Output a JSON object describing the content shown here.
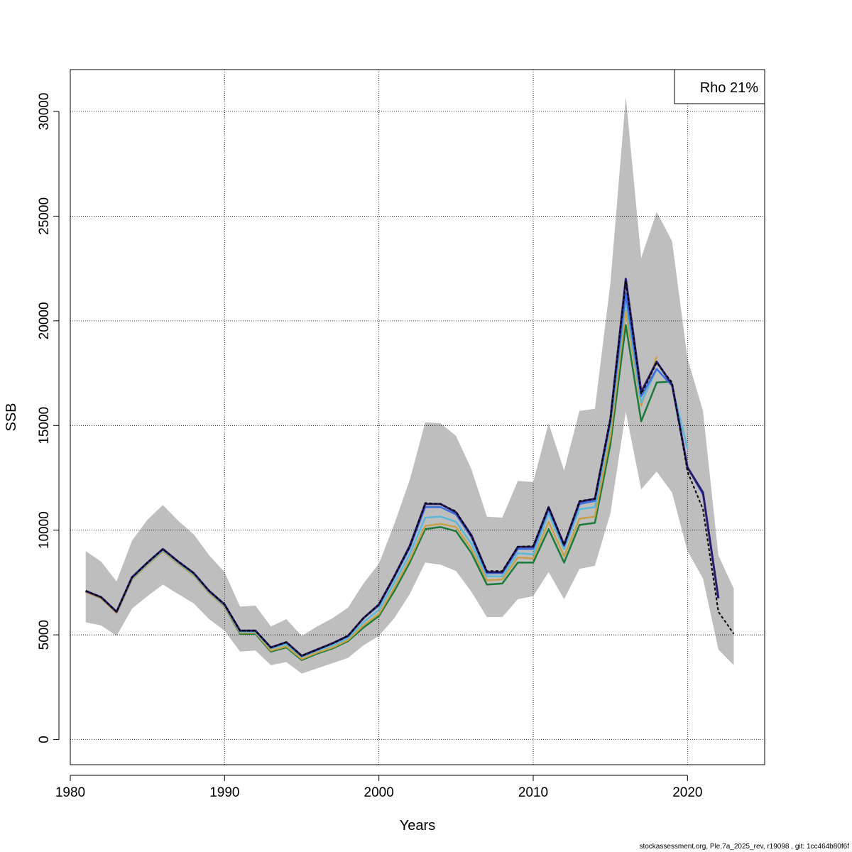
{
  "chart_data": {
    "type": "line",
    "title": "",
    "xlabel": "Years",
    "ylabel": "SSB",
    "xlim": [
      1980,
      2025
    ],
    "ylim": [
      -1200,
      32000
    ],
    "x_ticks": [
      1980,
      1990,
      2000,
      2010,
      2020
    ],
    "y_ticks": [
      0,
      5000,
      10000,
      15000,
      20000,
      25000,
      30000
    ],
    "grid": true,
    "legend": {
      "text": "Rho 21%",
      "placement": "top-right"
    },
    "confidence_band": {
      "color": "#bebebe",
      "x": [
        1981,
        1982,
        1983,
        1984,
        1985,
        1986,
        1987,
        1988,
        1989,
        1990,
        1991,
        1992,
        1993,
        1994,
        1995,
        1996,
        1997,
        1998,
        1999,
        2000,
        2001,
        2002,
        2003,
        2004,
        2005,
        2006,
        2007,
        2008,
        2009,
        2010,
        2011,
        2012,
        2013,
        2014,
        2015,
        2016,
        2017,
        2018,
        2019,
        2020,
        2021,
        2022,
        2023
      ],
      "upper": [
        9000,
        8500,
        7550,
        9500,
        10500,
        11200,
        10450,
        9800,
        8800,
        8000,
        6350,
        6400,
        5400,
        5750,
        4950,
        5400,
        5800,
        6300,
        7450,
        8400,
        10300,
        12400,
        15150,
        15100,
        14500,
        12900,
        10650,
        10600,
        12350,
        12300,
        15100,
        12850,
        15700,
        15800,
        21800,
        30700,
        23000,
        25200,
        23800,
        18200,
        15700,
        8800,
        7200
      ],
      "lower": [
        5600,
        5450,
        4950,
        6250,
        6850,
        7400,
        6950,
        6500,
        5750,
        5200,
        4200,
        4250,
        3550,
        3700,
        3150,
        3400,
        3650,
        3900,
        4500,
        4950,
        5800,
        6950,
        8450,
        8350,
        8050,
        7050,
        5850,
        5850,
        6700,
        6850,
        8000,
        6700,
        8150,
        8300,
        10800,
        15650,
        11950,
        12800,
        11800,
        9000,
        7700,
        4300,
        3550
      ]
    },
    "series": [
      {
        "color": "#000000",
        "dashed": true,
        "width": 2,
        "x": [
          1981,
          1982,
          1983,
          1984,
          1985,
          1986,
          1987,
          1988,
          1989,
          1990,
          1991,
          1992,
          1993,
          1994,
          1995,
          1996,
          1997,
          1998,
          1999,
          2000,
          2001,
          2002,
          2003,
          2004,
          2005,
          2006,
          2007,
          2008,
          2009,
          2010,
          2011,
          2012,
          2013,
          2014,
          2015,
          2016,
          2017,
          2018,
          2019,
          2020,
          2021,
          2022,
          2023
        ],
        "values": [
          7100,
          6800,
          6100,
          7750,
          8450,
          9100,
          8500,
          7950,
          7100,
          6450,
          5200,
          5200,
          4400,
          4650,
          4000,
          4300,
          4600,
          4950,
          5800,
          6450,
          7800,
          9200,
          11300,
          11250,
          10900,
          9700,
          8050,
          8050,
          9200,
          9250,
          11100,
          9300,
          11400,
          11500,
          15300,
          21900,
          16500,
          18000,
          17050,
          12800,
          11000,
          6100,
          5050
        ]
      },
      {
        "color": "#2a1b6e",
        "dashed": false,
        "width": 3,
        "x": [
          1981,
          1982,
          1983,
          1984,
          1985,
          1986,
          1987,
          1988,
          1989,
          1990,
          1991,
          1992,
          1993,
          1994,
          1995,
          1996,
          1997,
          1998,
          1999,
          2000,
          2001,
          2002,
          2003,
          2004,
          2005,
          2006,
          2007,
          2008,
          2009,
          2010,
          2011,
          2012,
          2013,
          2014,
          2015,
          2016,
          2017,
          2018,
          2019,
          2020,
          2021,
          2022
        ],
        "values": [
          7100,
          6800,
          6100,
          7750,
          8450,
          9100,
          8500,
          7950,
          7100,
          6450,
          5200,
          5200,
          4400,
          4650,
          4000,
          4300,
          4600,
          4950,
          5800,
          6450,
          7800,
          9250,
          11250,
          11250,
          10850,
          9750,
          8000,
          8000,
          9200,
          9200,
          11100,
          9300,
          11350,
          11500,
          15300,
          22000,
          16600,
          18050,
          16950,
          13000,
          11800,
          6750
        ]
      },
      {
        "color": "#3b6ee0",
        "dashed": false,
        "width": 2.5,
        "x": [
          1981,
          1982,
          1983,
          1984,
          1985,
          1986,
          1987,
          1988,
          1989,
          1990,
          1991,
          1992,
          1993,
          1994,
          1995,
          1996,
          1997,
          1998,
          1999,
          2000,
          2001,
          2002,
          2003,
          2004,
          2005,
          2006,
          2007,
          2008,
          2009,
          2010,
          2011,
          2012,
          2013,
          2014,
          2015,
          2016,
          2017,
          2018,
          2019,
          2020,
          2021
        ],
        "values": [
          7100,
          6800,
          6100,
          7750,
          8450,
          9100,
          8500,
          7950,
          7100,
          6450,
          5200,
          5200,
          4400,
          4650,
          4000,
          4300,
          4600,
          4950,
          5800,
          6400,
          7750,
          9150,
          11100,
          11100,
          10750,
          9650,
          7950,
          7950,
          9100,
          9100,
          11000,
          9250,
          11250,
          11400,
          15200,
          21300,
          16400,
          17700,
          16900,
          13000,
          11700
        ]
      },
      {
        "color": "#5bb8d6",
        "dashed": false,
        "width": 2.5,
        "x": [
          1981,
          1982,
          1983,
          1984,
          1985,
          1986,
          1987,
          1988,
          1989,
          1990,
          1991,
          1992,
          1993,
          1994,
          1995,
          1996,
          1997,
          1998,
          1999,
          2000,
          2001,
          2002,
          2003,
          2004,
          2005,
          2006,
          2007,
          2008,
          2009,
          2010,
          2011,
          2012,
          2013,
          2014,
          2015,
          2016,
          2017,
          2018,
          2019,
          2020
        ],
        "values": [
          7100,
          6800,
          6100,
          7700,
          8400,
          9050,
          8450,
          7900,
          7050,
          6400,
          5150,
          5150,
          4350,
          4550,
          3950,
          4250,
          4500,
          4850,
          5600,
          6200,
          7500,
          8850,
          10600,
          10650,
          10400,
          9350,
          7800,
          7800,
          8900,
          8850,
          10800,
          9100,
          11000,
          11100,
          15000,
          21000,
          16100,
          17700,
          16900,
          13900
        ]
      },
      {
        "color": "#c9a04a",
        "dashed": false,
        "width": 2.5,
        "x": [
          1981,
          1982,
          1983,
          1984,
          1985,
          1986,
          1987,
          1988,
          1989,
          1990,
          1991,
          1992,
          1993,
          1994,
          1995,
          1996,
          1997,
          1998,
          1999,
          2000,
          2001,
          2002,
          2003,
          2004,
          2005,
          2006,
          2007,
          2008,
          2009,
          2010,
          2011,
          2012,
          2013,
          2014,
          2015,
          2016,
          2017,
          2018
        ],
        "values": [
          7050,
          6750,
          6050,
          7650,
          8350,
          9000,
          8400,
          7850,
          7000,
          6350,
          5100,
          5100,
          4250,
          4450,
          3850,
          4150,
          4400,
          4750,
          5450,
          6000,
          7250,
          8600,
          10200,
          10300,
          10150,
          9100,
          7600,
          7650,
          8700,
          8650,
          10400,
          8750,
          10550,
          10650,
          14500,
          20500,
          15950,
          18300
        ]
      },
      {
        "color": "#1a7a3a",
        "dashed": false,
        "width": 2.5,
        "x": [
          1981,
          1982,
          1983,
          1984,
          1985,
          1986,
          1987,
          1988,
          1989,
          1990,
          1991,
          1992,
          1993,
          1994,
          1995,
          1996,
          1997,
          1998,
          1999,
          2000,
          2001,
          2002,
          2003,
          2004,
          2005,
          2006,
          2007,
          2008,
          2009,
          2010,
          2011,
          2012,
          2013,
          2014,
          2015,
          2016,
          2017,
          2018,
          2019
        ],
        "values": [
          7050,
          6750,
          6050,
          7650,
          8350,
          9000,
          8400,
          7850,
          7000,
          6350,
          5050,
          5050,
          4200,
          4400,
          3800,
          4100,
          4350,
          4700,
          5350,
          5900,
          7100,
          8450,
          10050,
          10150,
          9950,
          8900,
          7400,
          7450,
          8450,
          8450,
          10050,
          8450,
          10250,
          10350,
          14100,
          19800,
          15200,
          17050,
          17100
        ]
      }
    ]
  },
  "footer": "stockassessment.org, Ple.7a_2025_rev, r19098 , git: 1cc464b80f6f"
}
